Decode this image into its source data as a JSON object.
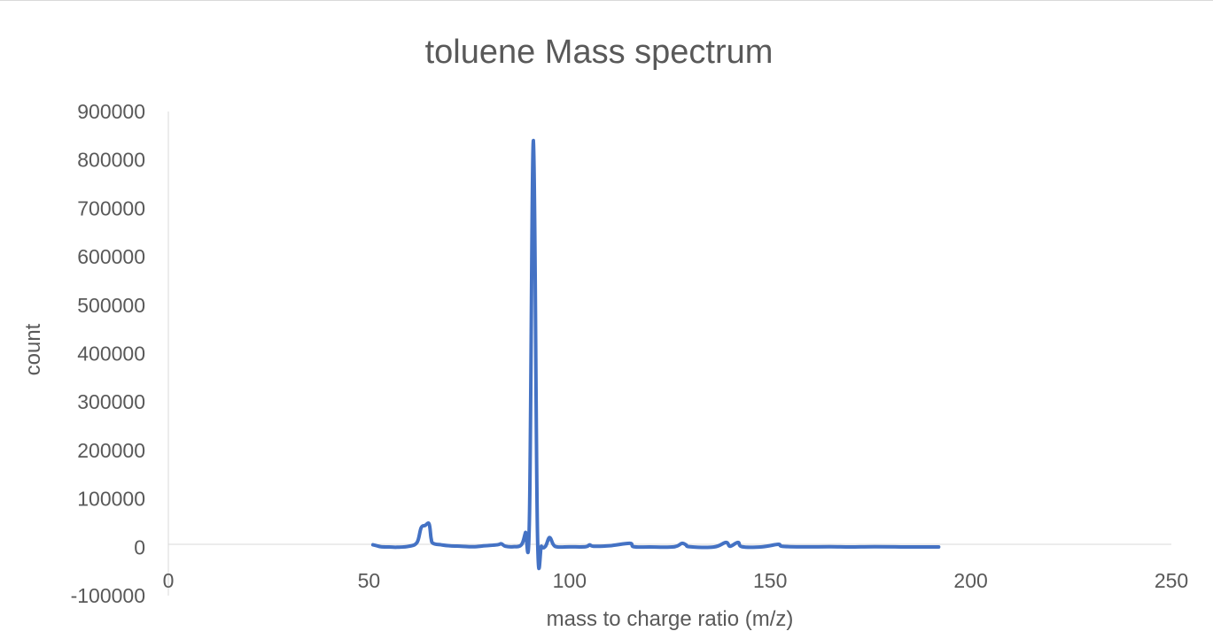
{
  "chart_data": {
    "type": "line",
    "title": "toluene Mass spectrum",
    "xlabel": "mass to charge ratio (m/z)",
    "ylabel": "count",
    "xlim": [
      0,
      250
    ],
    "ylim": [
      -100000,
      900000
    ],
    "x_ticks": [
      "0",
      "50",
      "100",
      "150",
      "200",
      "250"
    ],
    "y_ticks": [
      "-100000",
      "0",
      "100000",
      "200000",
      "300000",
      "400000",
      "500000",
      "600000",
      "700000",
      "800000",
      "900000"
    ],
    "grid": false,
    "legend": "none",
    "series": [
      {
        "color": "#4472c4",
        "smooth": true,
        "points": [
          [
            51,
            5000
          ],
          [
            52,
            3000
          ],
          [
            53,
            1000
          ],
          [
            55,
            500
          ],
          [
            57,
            0
          ],
          [
            60,
            2000
          ],
          [
            62,
            10000
          ],
          [
            63,
            40000
          ],
          [
            64,
            45000
          ],
          [
            65,
            48000
          ],
          [
            65.5,
            18000
          ],
          [
            66,
            8000
          ],
          [
            68,
            5000
          ],
          [
            70,
            3000
          ],
          [
            73,
            2000
          ],
          [
            76,
            1000
          ],
          [
            79,
            3000
          ],
          [
            82,
            5000
          ],
          [
            83,
            7000
          ],
          [
            84,
            2000
          ],
          [
            86,
            1000
          ],
          [
            88,
            5000
          ],
          [
            89,
            30000
          ],
          [
            90,
            60000
          ],
          [
            91,
            840000
          ],
          [
            92,
            30000
          ],
          [
            93,
            2000
          ],
          [
            94,
            2000
          ],
          [
            95,
            20000
          ],
          [
            96,
            5000
          ],
          [
            97,
            500
          ],
          [
            100,
            800
          ],
          [
            104,
            1000
          ],
          [
            105,
            5000
          ],
          [
            106,
            2000
          ],
          [
            110,
            3000
          ],
          [
            115,
            8000
          ],
          [
            116,
            1000
          ],
          [
            120,
            500
          ],
          [
            126,
            800
          ],
          [
            128,
            8000
          ],
          [
            129,
            5000
          ],
          [
            130,
            1000
          ],
          [
            136,
            500
          ],
          [
            139,
            10000
          ],
          [
            140,
            2000
          ],
          [
            142,
            10000
          ],
          [
            143,
            1000
          ],
          [
            148,
            800
          ],
          [
            152,
            6000
          ],
          [
            153,
            2000
          ],
          [
            158,
            800
          ],
          [
            165,
            1000
          ],
          [
            170,
            500
          ],
          [
            176,
            1000
          ],
          [
            185,
            500
          ],
          [
            192,
            500
          ]
        ]
      }
    ]
  }
}
